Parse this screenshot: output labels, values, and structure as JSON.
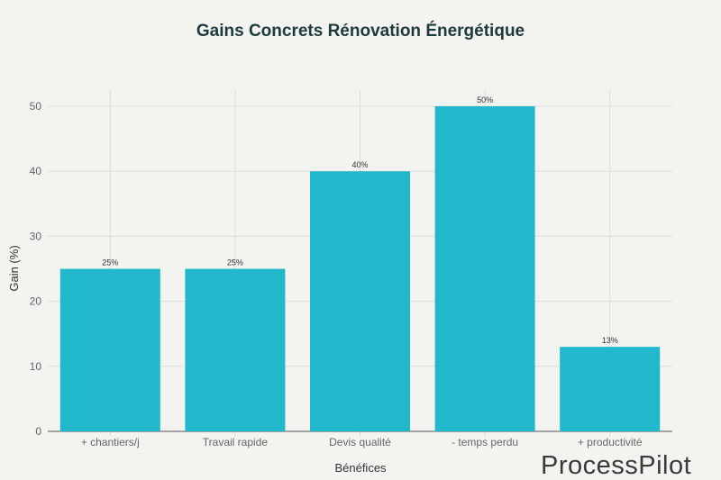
{
  "chart_data": {
    "type": "bar",
    "title": "Gains Concrets Rénovation Énergétique",
    "xlabel": "Bénéfices",
    "ylabel": "Gain (%)",
    "categories": [
      "+ chantiers/j",
      "Travail rapide",
      "Devis qualité",
      "- temps perdu",
      "+ productivité"
    ],
    "values": [
      25,
      25,
      40,
      50,
      13
    ],
    "data_labels": [
      "25%",
      "25%",
      "40%",
      "50%",
      "13%"
    ],
    "ylim": [
      0,
      52.5
    ],
    "yticks": [
      0,
      10,
      20,
      30,
      40,
      50
    ],
    "grid": true,
    "bar_color": "#21b8cb"
  },
  "watermark": "ProcessPilot"
}
